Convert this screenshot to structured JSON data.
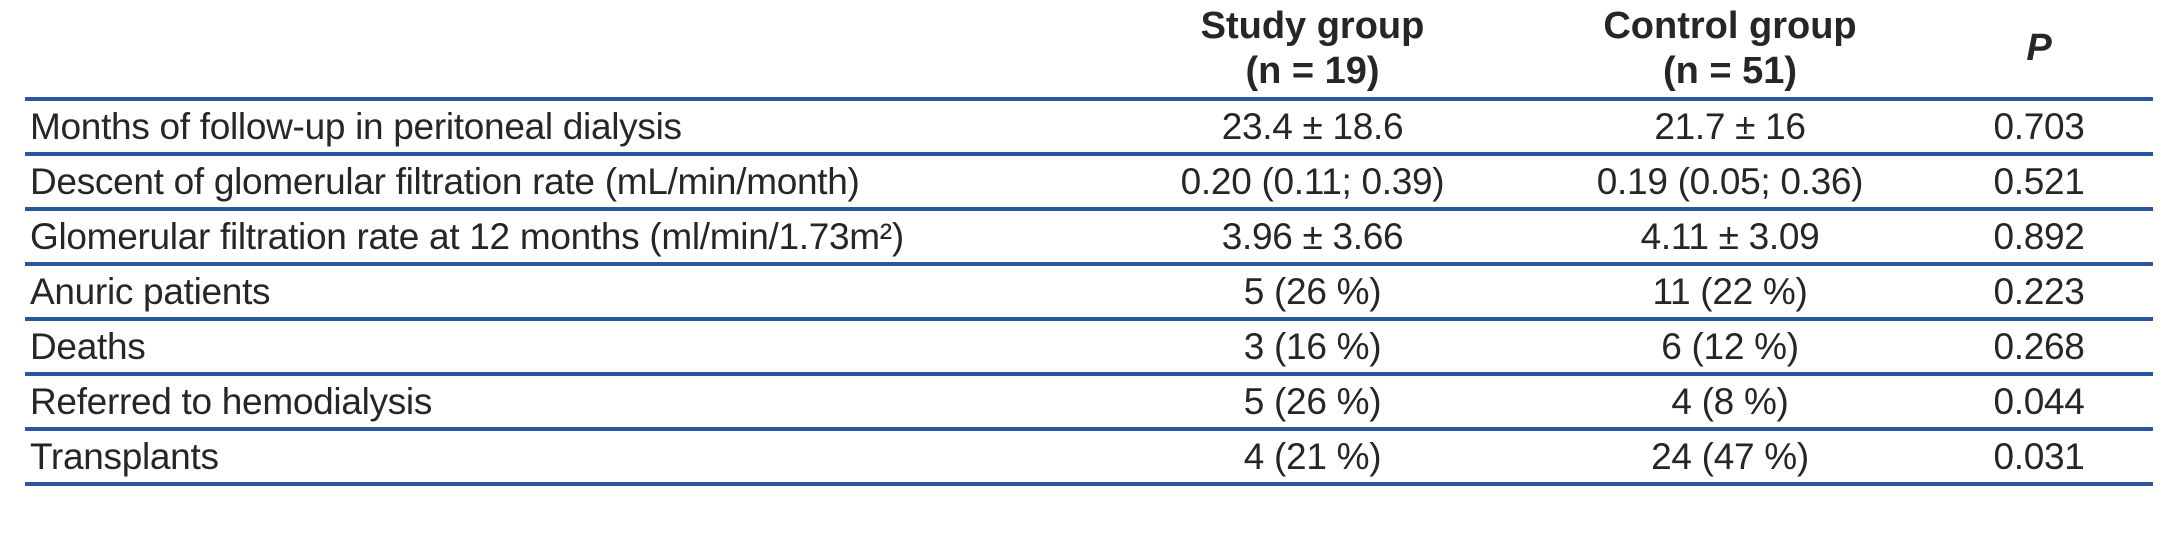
{
  "table": {
    "header": {
      "row_label": "",
      "study": {
        "label": "Study group",
        "sublabel": "(n = 19)"
      },
      "control": {
        "label": "Control group",
        "sublabel": "(n = 51)"
      },
      "p": {
        "label": "P"
      }
    },
    "rows": [
      {
        "label": "Months of follow-up in peritoneal dialysis",
        "study": "23.4 ± 18.6",
        "control": "21.7 ± 16",
        "p": "0.703"
      },
      {
        "label": "Descent of glomerular filtration rate (mL/min/month)",
        "study": "0.20 (0.11; 0.39)",
        "control": "0.19 (0.05; 0.36)",
        "p": "0.521"
      },
      {
        "label": "Glomerular filtration rate at 12 months (ml/min/1.73m²)",
        "study": "3.96 ± 3.66",
        "control": "4.11 ± 3.09",
        "p": "0.892"
      },
      {
        "label": "Anuric patients",
        "study": "5 (26 %)",
        "control": "11 (22 %)",
        "p": "0.223"
      },
      {
        "label": "Deaths",
        "study": "3 (16 %)",
        "control": "6 (12 %)",
        "p": "0.268"
      },
      {
        "label": "Referred to hemodialysis",
        "study": "5 (26 %)",
        "control": "4 (8 %)",
        "p": "0.044"
      },
      {
        "label": "Transplants",
        "study": "4 (21 %)",
        "control": "24 (47 %)",
        "p": "0.031"
      }
    ],
    "colors": {
      "rule": "#2b559c",
      "text": "#262626"
    }
  }
}
